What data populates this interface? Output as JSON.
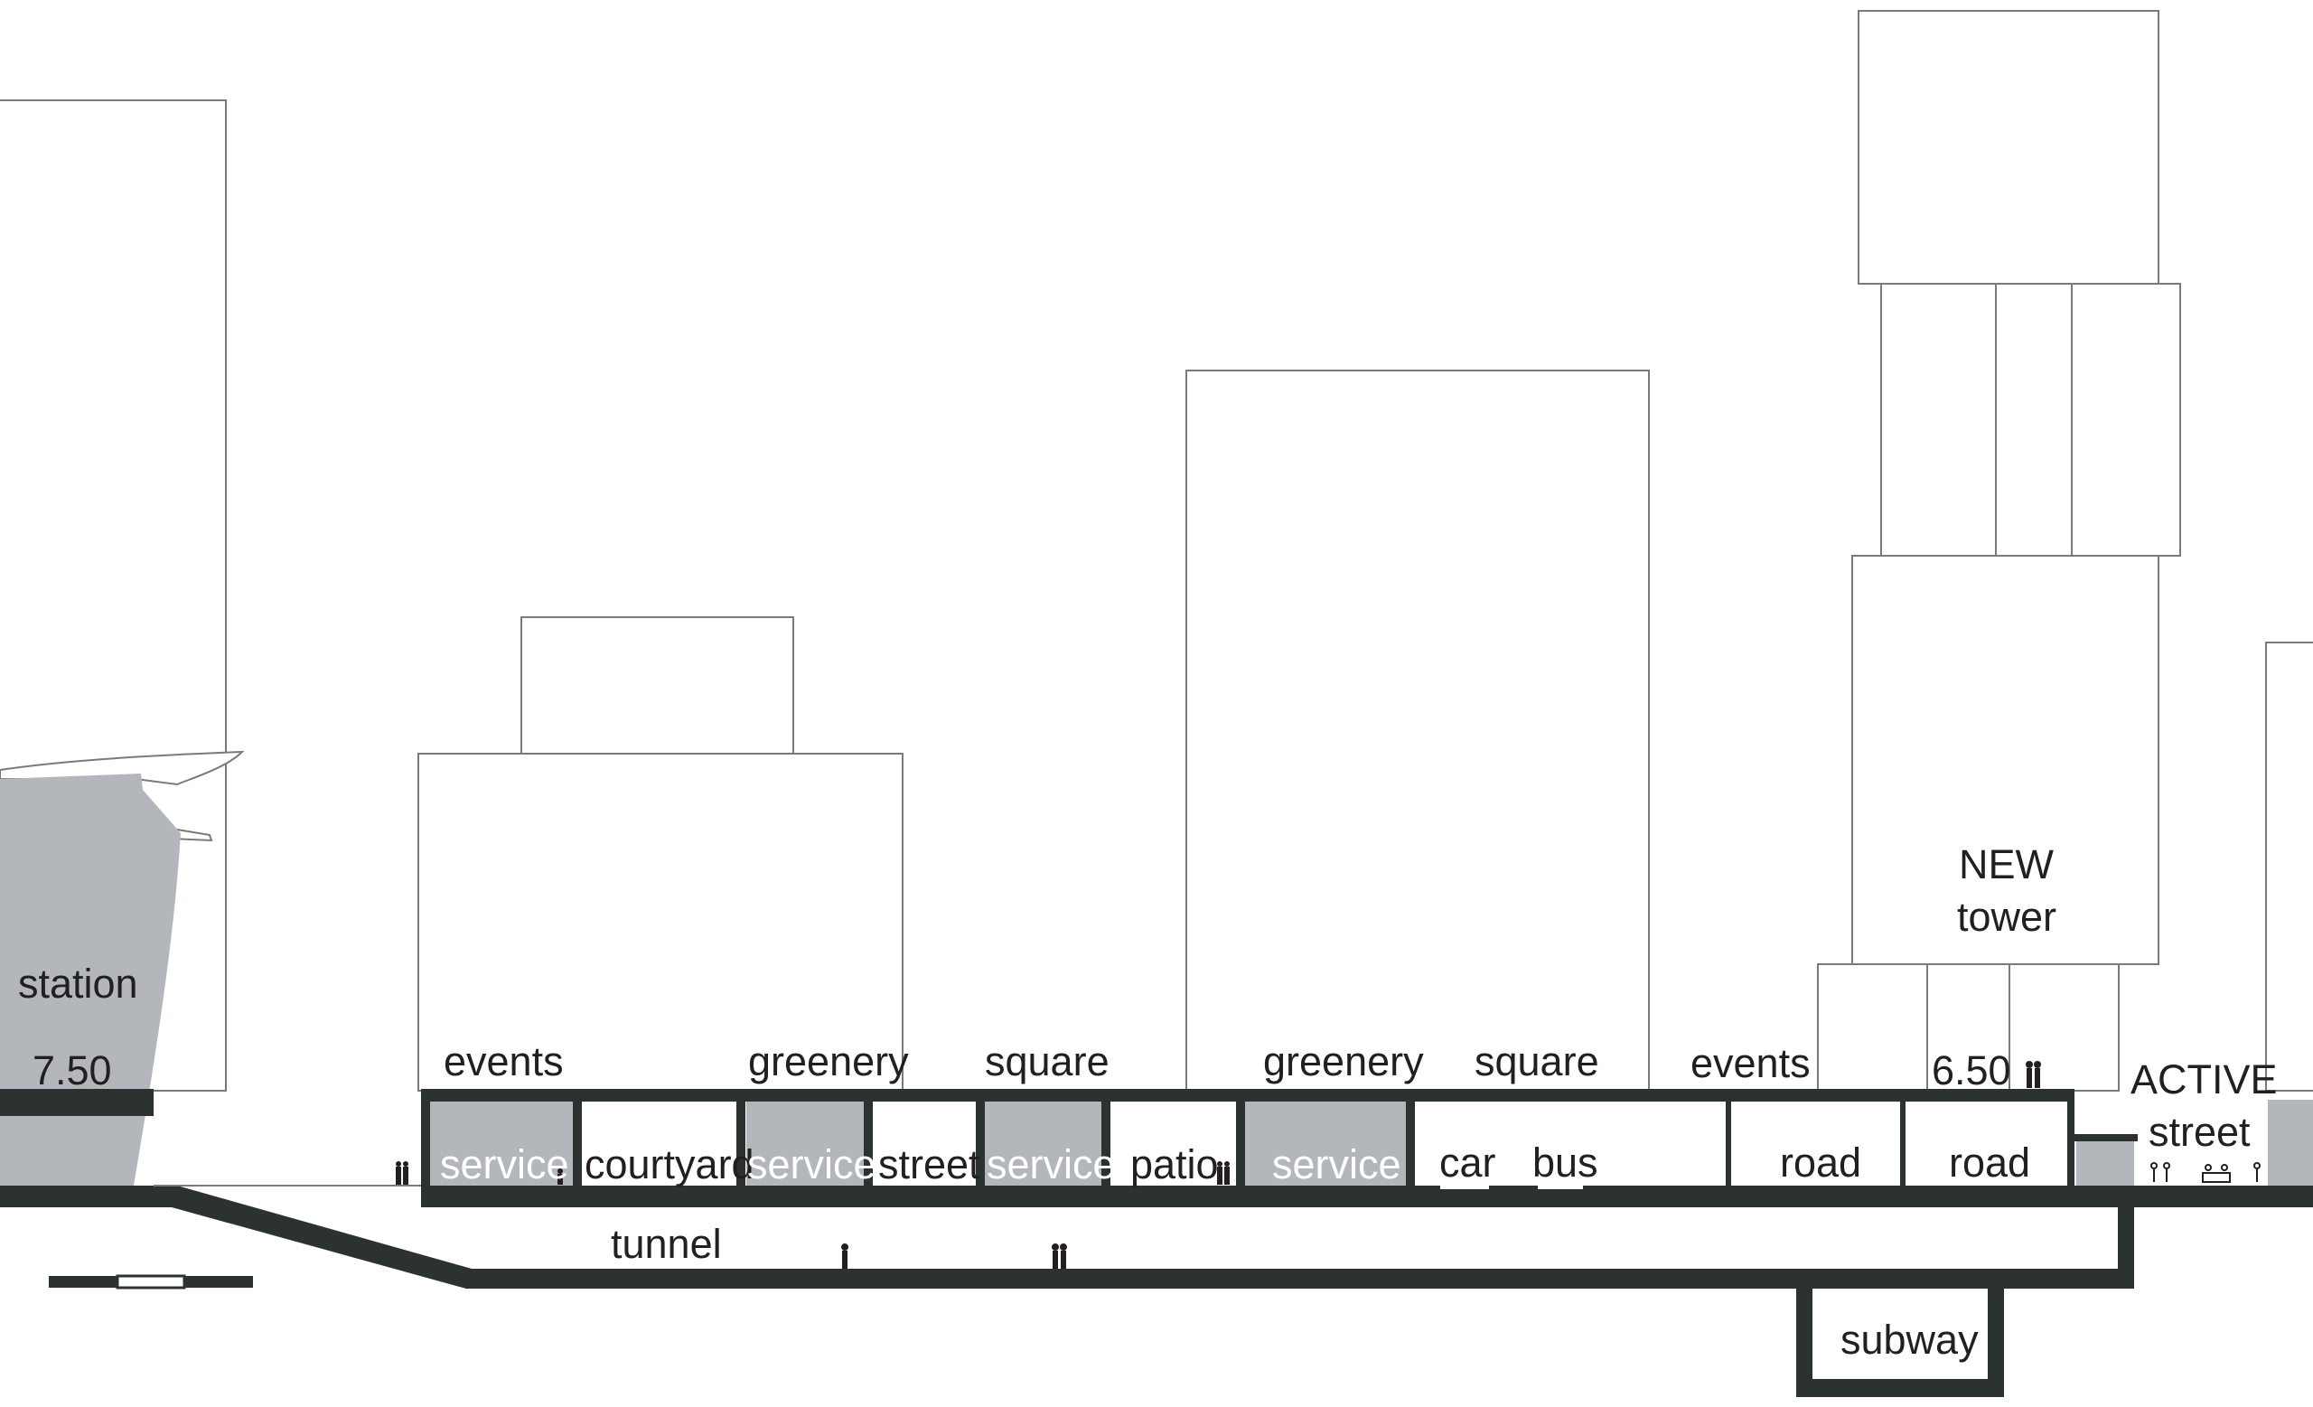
{
  "colors": {
    "slab": "#2b3230",
    "service_fill": "#b3b7bc",
    "outline": "#7a7a7a",
    "text": "#231f20"
  },
  "labels": {
    "station": "station",
    "station_level": "7.50",
    "events_left": "events",
    "greenery_left": "greenery",
    "square_left": "square",
    "greenery_mid": "greenery",
    "square_mid": "square",
    "events_right": "events",
    "tower_level": "6.50",
    "new": "NEW",
    "tower": "tower",
    "active": "ACTIVE",
    "street_right": "street",
    "service_1": "service",
    "courtyard": "courtyard",
    "service_2": "service",
    "street_mid": "street",
    "service_3": "service",
    "patio": "patio",
    "service_4": "service",
    "car": "car",
    "bus": "bus",
    "road_1": "road",
    "road_2": "road",
    "tunnel": "tunnel",
    "subway": "subway"
  }
}
